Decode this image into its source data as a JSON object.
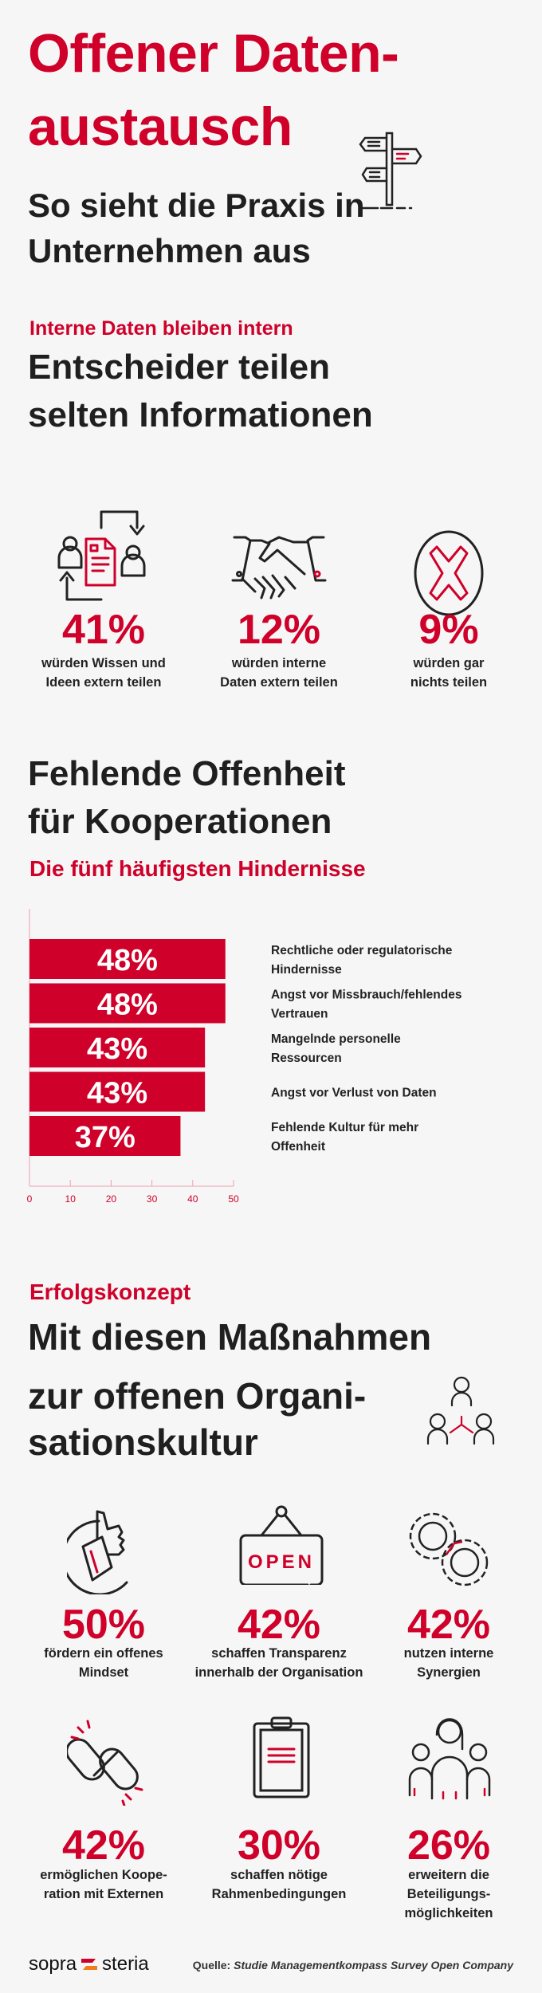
{
  "header": {
    "title_line1": "Offener Daten-",
    "title_line2": "austausch",
    "subtitle_line1": "So sieht die Praxis in",
    "subtitle_line2": "Unternehmen aus",
    "icon": "signpost-icon"
  },
  "section1": {
    "kicker": "Interne Daten bleiben intern",
    "heading_line1": "Entscheider teilen",
    "heading_line2": "selten Informationen",
    "stats": [
      {
        "icon": "knowledge-exchange-icon",
        "value": "41%",
        "line1": "würden Wissen und",
        "line2": "Ideen extern teilen"
      },
      {
        "icon": "handshake-icon",
        "value": "12%",
        "line1": "würden interne",
        "line2": "Daten extern teilen"
      },
      {
        "icon": "x-circle-icon",
        "value": "9%",
        "line1": "würden gar",
        "line2": "nichts teilen"
      }
    ]
  },
  "section2": {
    "heading_line1": "Fehlende Offenheit",
    "heading_line2": "für Kooperationen",
    "kicker": "Die fünf häufigsten Hindernisse"
  },
  "chart_data": {
    "type": "bar",
    "orientation": "horizontal",
    "categories": [
      [
        "Rechtliche oder regulatorische",
        "Hindernisse"
      ],
      [
        "Angst vor Missbrauch/fehlendes",
        "Vertrauen"
      ],
      [
        "Mangelnde personelle",
        "Ressourcen"
      ],
      [
        "Angst vor Verlust von Daten"
      ],
      [
        "Fehlende Kultur für mehr",
        "Offenheit"
      ]
    ],
    "values": [
      48,
      48,
      43,
      43,
      37
    ],
    "data_labels": [
      "48%",
      "48%",
      "43%",
      "43%",
      "37%"
    ],
    "xlim": [
      0,
      50
    ],
    "xticks": [
      0,
      10,
      20,
      30,
      40,
      50
    ],
    "grid": false,
    "bar_color": "#cf0029"
  },
  "section3": {
    "kicker": "Erfolgskonzept",
    "heading_line1": "Mit diesen Maßnahmen",
    "heading_line2": "zur offenen Organi-",
    "heading_line3": "sationskultur",
    "icon": "team-network-icon",
    "open_sign_text": "OPEN",
    "stats": [
      {
        "icon": "thumbs-up-icon",
        "value": "50%",
        "line1": "fördern ein offenes",
        "line2": "Mindset"
      },
      {
        "icon": "open-sign-icon",
        "value": "42%",
        "line1": "schaffen Transparenz",
        "line2": "innerhalb der Organisation"
      },
      {
        "icon": "gears-icon",
        "value": "42%",
        "line1": "nutzen interne",
        "line2": "Synergien"
      },
      {
        "icon": "chain-link-icon",
        "value": "42%",
        "line1": "ermöglichen Koope-",
        "line2": "ration mit Externen"
      },
      {
        "icon": "clipboard-icon",
        "value": "30%",
        "line1": "schaffen nötige",
        "line2": "Rahmenbedingungen"
      },
      {
        "icon": "group-people-icon",
        "value": "26%",
        "line1": "erweitern die",
        "line2": "Beteiligungs-",
        "line3": "möglichkeiten"
      }
    ]
  },
  "footer": {
    "logo_left": "sopra",
    "logo_right": "steria",
    "source_label": "Quelle:",
    "source_text": "Studie Managementkompass Survey Open Company"
  },
  "colors": {
    "accent": "#cf0029",
    "text": "#1f1f1f",
    "background": "#f6f6f6",
    "logo_orange": "#f07d1a"
  }
}
